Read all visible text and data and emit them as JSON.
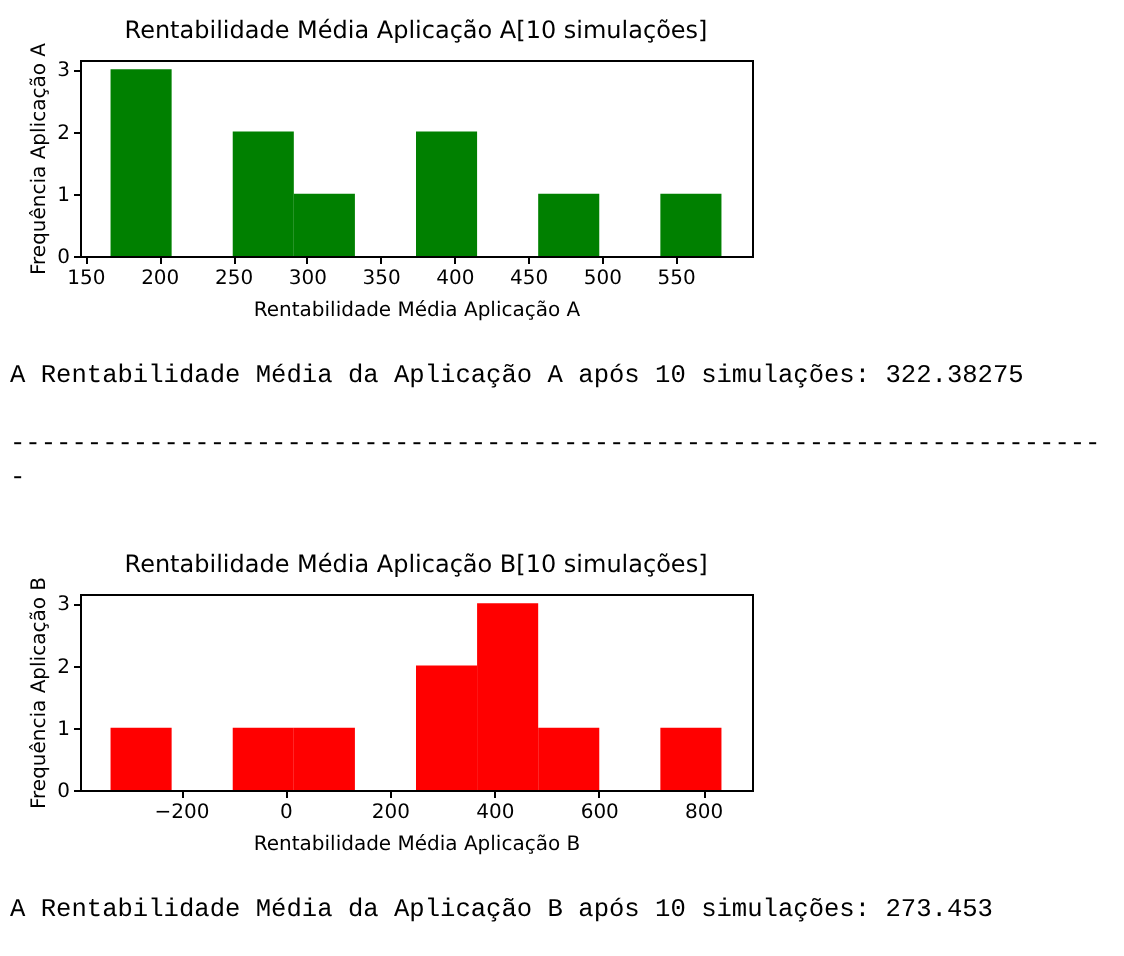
{
  "chart_data": [
    {
      "type": "histogram",
      "title": "Rentabilidade Média Aplicação A[10 simulações]",
      "xlabel": "Rentabilidade Média Aplicação A",
      "ylabel": "Frequência Aplicação A",
      "bins": [
        167,
        208.4,
        249.8,
        291.2,
        332.6,
        374,
        415.4,
        456.8,
        498.2,
        539.6,
        581
      ],
      "values": [
        3,
        0,
        2,
        1,
        0,
        2,
        0,
        1,
        0,
        1
      ],
      "color": "#008000",
      "xlim": [
        146.3,
        601.7
      ],
      "ylim": [
        0,
        3.15
      ],
      "xticks": [
        150,
        200,
        250,
        300,
        350,
        400,
        450,
        500,
        550
      ],
      "yticks": [
        0,
        1,
        2,
        3
      ],
      "annotations": [
        "A Rentabilidade Média da Aplicação A após 10 simulações: 322.38275",
        "-----------------------------------------------------------------------\n-"
      ]
    },
    {
      "type": "histogram",
      "title": "Rentabilidade Média Aplicação B[10 simulações]",
      "xlabel": "Rentabilidade Média Aplicação B",
      "ylabel": "Frequência Aplicação B",
      "bins": [
        -335,
        -218,
        -101,
        16,
        133,
        250,
        367,
        484,
        601,
        718,
        835
      ],
      "values": [
        1,
        0,
        1,
        1,
        0,
        2,
        3,
        1,
        0,
        1
      ],
      "color": "#ff0000",
      "xlim": [
        -393.5,
        893.5
      ],
      "ylim": [
        0,
        3.15
      ],
      "xticks": [
        -200,
        0,
        200,
        400,
        600,
        800
      ],
      "yticks": [
        0,
        1,
        2,
        3
      ],
      "annotations": [
        "A Rentabilidade Média da Aplicação B após 10 simulações: 273.453"
      ]
    }
  ]
}
